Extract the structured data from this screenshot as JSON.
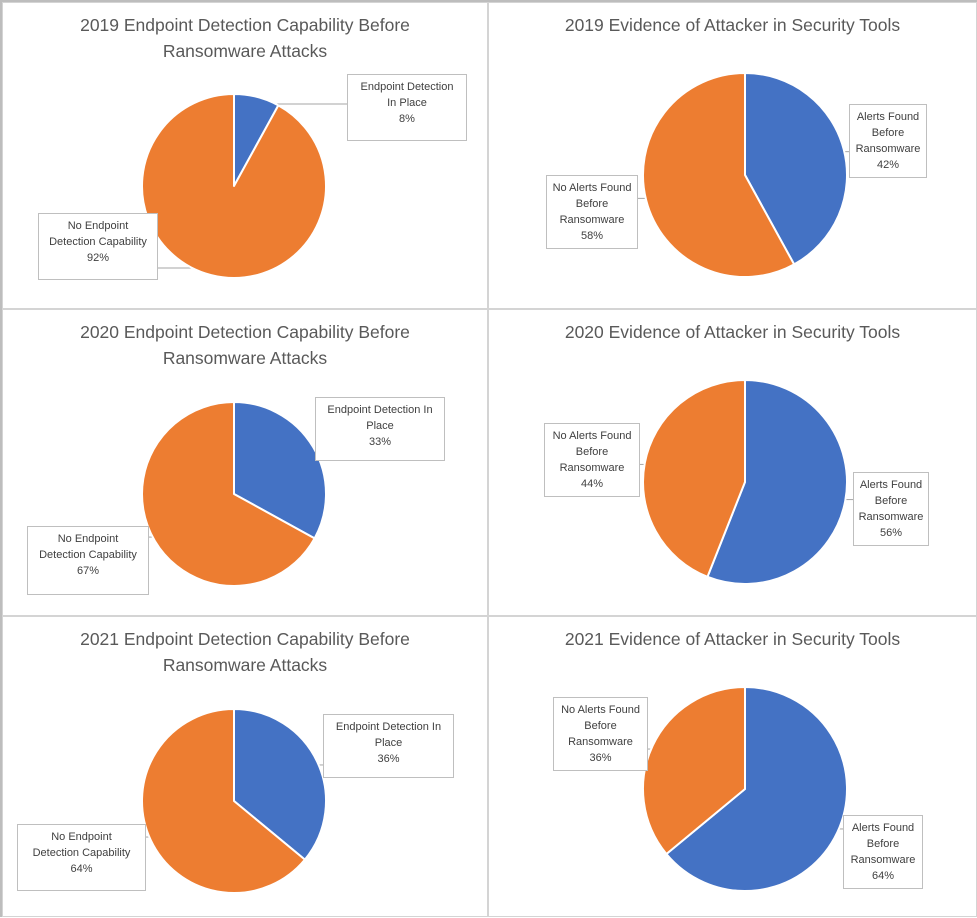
{
  "colors": {
    "blue": "#4472C4",
    "orange": "#ED7D31",
    "callout_border": "#BFBFBF",
    "leader": "#A6A6A6"
  },
  "chart_data": [
    {
      "type": "pie",
      "title": "2019 Endpoint Detection Capability Before\nRansomware Attacks",
      "slices": [
        {
          "label": "Endpoint Detection\nIn Place",
          "value": 8,
          "value_label": "8%",
          "color": "#4472C4"
        },
        {
          "label": "No Endpoint\nDetection Capability",
          "value": 92,
          "value_label": "92%",
          "color": "#ED7D31"
        }
      ]
    },
    {
      "type": "pie",
      "title": "2019 Evidence of Attacker in Security Tools",
      "slices": [
        {
          "label": "Alerts Found\nBefore\nRansomware",
          "value": 42,
          "value_label": "42%",
          "color": "#4472C4"
        },
        {
          "label": "No Alerts Found\nBefore\nRansomware",
          "value": 58,
          "value_label": "58%",
          "color": "#ED7D31"
        }
      ]
    },
    {
      "type": "pie",
      "title": "2020 Endpoint Detection Capability Before\nRansomware Attacks",
      "slices": [
        {
          "label": "Endpoint Detection In\nPlace",
          "value": 33,
          "value_label": "33%",
          "color": "#4472C4"
        },
        {
          "label": "No Endpoint\nDetection Capability",
          "value": 67,
          "value_label": "67%",
          "color": "#ED7D31"
        }
      ]
    },
    {
      "type": "pie",
      "title": "2020 Evidence of Attacker in Security Tools",
      "slices": [
        {
          "label": "Alerts Found\nBefore\nRansomware",
          "value": 56,
          "value_label": "56%",
          "color": "#4472C4"
        },
        {
          "label": "No Alerts Found\nBefore\nRansomware",
          "value": 44,
          "value_label": "44%",
          "color": "#ED7D31"
        }
      ]
    },
    {
      "type": "pie",
      "title": "2021 Endpoint Detection Capability Before\nRansomware Attacks",
      "slices": [
        {
          "label": "Endpoint Detection In\nPlace",
          "value": 36,
          "value_label": "36%",
          "color": "#4472C4"
        },
        {
          "label": "No Endpoint\nDetection Capability",
          "value": 64,
          "value_label": "64%",
          "color": "#ED7D31"
        }
      ]
    },
    {
      "type": "pie",
      "title": "2021 Evidence of Attacker in Security Tools",
      "slices": [
        {
          "label": "Alerts Found\nBefore\nRansomware",
          "value": 64,
          "value_label": "64%",
          "color": "#4472C4"
        },
        {
          "label": "No Alerts Found\nBefore\nRansomware",
          "value": 36,
          "value_label": "36%",
          "color": "#ED7D31"
        }
      ]
    }
  ]
}
